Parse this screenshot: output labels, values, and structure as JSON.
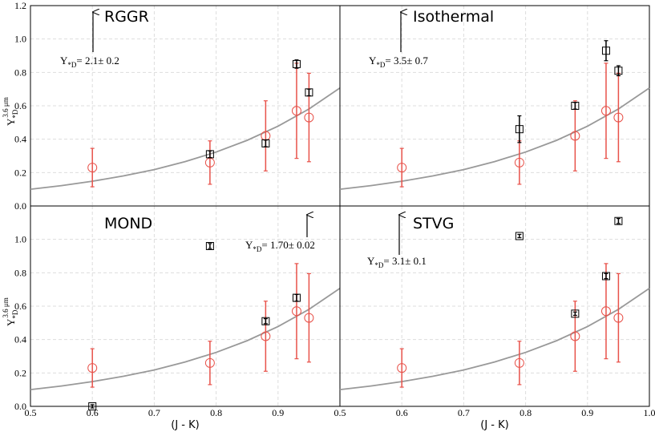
{
  "chart_data": [
    {
      "type": "scatter",
      "title": "RGGR",
      "annotation": {
        "symbol": "Y",
        "subscript": "*D",
        "text": "= 2.1± 0.2"
      },
      "ylabel": {
        "symbol": "Y",
        "subscript": "*D",
        "superscript": "3.6 μm"
      },
      "xlim": [
        0.5,
        1.0
      ],
      "ylim": [
        0,
        1.2
      ],
      "xticks": [
        0.5,
        0.6,
        0.7,
        0.8,
        0.9
      ],
      "xtick_labels": false,
      "yticks": [
        {
          "value": 0,
          "label": "0.0"
        },
        0.2,
        0.4,
        0.6,
        0.8,
        {
          "value": 1,
          "label": "1.0"
        },
        1.2
      ],
      "ytick_labels": true,
      "grid": true,
      "curve": {
        "color": "#999999",
        "x": [
          0.5,
          0.55,
          0.6,
          0.65,
          0.7,
          0.75,
          0.8,
          0.85,
          0.9,
          0.95,
          1.0
        ],
        "values": [
          0.1,
          0.122,
          0.148,
          0.18,
          0.218,
          0.266,
          0.323,
          0.393,
          0.478,
          0.581,
          0.707
        ]
      },
      "series": [
        {
          "marker": "circle",
          "color": "#e8524a",
          "x": [
            0.6,
            0.79,
            0.88,
            0.93,
            0.95
          ],
          "values": [
            0.23,
            0.26,
            0.42,
            0.57,
            0.53
          ],
          "errors": [
            0.115,
            0.13,
            0.21,
            0.285,
            0.265
          ]
        },
        {
          "marker": "square",
          "color": "#000000",
          "x": [
            0.79,
            0.88,
            0.93,
            0.95
          ],
          "values": [
            0.31,
            0.375,
            0.85,
            0.68
          ],
          "errors": [
            0.02,
            0.02,
            0.025,
            0.02
          ]
        }
      ]
    },
    {
      "type": "scatter",
      "title": "Isothermal",
      "annotation": {
        "symbol": "Y",
        "subscript": "*D",
        "text": "= 3.5± 0.7"
      },
      "xlim": [
        0.5,
        1.0
      ],
      "ylim": [
        0,
        1.2
      ],
      "xticks": [
        0.5,
        0.6,
        0.7,
        0.8,
        0.9,
        {
          "value": 1,
          "label": "1.0"
        }
      ],
      "xtick_labels": false,
      "yticks": [
        {
          "value": 0,
          "label": "0.0"
        },
        0.2,
        0.4,
        0.6,
        0.8,
        {
          "value": 1,
          "label": "1.0"
        },
        1.2
      ],
      "ytick_labels": false,
      "grid": true,
      "curve": {
        "color": "#999999",
        "x": [
          0.5,
          0.55,
          0.6,
          0.65,
          0.7,
          0.75,
          0.8,
          0.85,
          0.9,
          0.95,
          1.0
        ],
        "values": [
          0.1,
          0.122,
          0.148,
          0.18,
          0.218,
          0.266,
          0.323,
          0.393,
          0.478,
          0.581,
          0.707
        ]
      },
      "series": [
        {
          "marker": "circle",
          "color": "#e8524a",
          "x": [
            0.6,
            0.79,
            0.88,
            0.93,
            0.95
          ],
          "values": [
            0.23,
            0.26,
            0.42,
            0.57,
            0.53
          ],
          "errors": [
            0.115,
            0.13,
            0.21,
            0.285,
            0.265
          ]
        },
        {
          "marker": "square",
          "color": "#000000",
          "x": [
            0.79,
            0.88,
            0.93,
            0.95
          ],
          "values": [
            0.46,
            0.6,
            0.93,
            0.81
          ],
          "errors": [
            0.08,
            0.02,
            0.06,
            0.03
          ]
        }
      ]
    },
    {
      "type": "scatter",
      "title": "MOND",
      "annotation": {
        "symbol": "Y",
        "subscript": "*D",
        "text": "= 1.70± 0.02"
      },
      "ylabel": {
        "symbol": "Y",
        "subscript": "*D",
        "superscript": "3.6 μm"
      },
      "xlabel": "(J - K)",
      "xlim": [
        0.5,
        1.0
      ],
      "ylim": [
        0,
        1.2
      ],
      "xticks": [
        0.5,
        0.6,
        0.7,
        0.8,
        0.9
      ],
      "xtick_labels": true,
      "yticks": [
        {
          "value": 0,
          "label": "0.0"
        },
        0.2,
        0.4,
        0.6,
        0.8,
        {
          "value": 1,
          "label": "1.0"
        }
      ],
      "ytick_labels": true,
      "grid": true,
      "curve": {
        "color": "#999999",
        "x": [
          0.5,
          0.55,
          0.6,
          0.65,
          0.7,
          0.75,
          0.8,
          0.85,
          0.9,
          0.95,
          1.0
        ],
        "values": [
          0.1,
          0.122,
          0.148,
          0.18,
          0.218,
          0.266,
          0.323,
          0.393,
          0.478,
          0.581,
          0.707
        ]
      },
      "series": [
        {
          "marker": "circle",
          "color": "#e8524a",
          "x": [
            0.6,
            0.79,
            0.88,
            0.93,
            0.95
          ],
          "values": [
            0.23,
            0.26,
            0.42,
            0.57,
            0.53
          ],
          "errors": [
            0.115,
            0.13,
            0.21,
            0.285,
            0.265
          ]
        },
        {
          "marker": "square",
          "color": "#000000",
          "x": [
            0.6,
            0.79,
            0.88,
            0.93
          ],
          "values": [
            0.0,
            0.96,
            0.51,
            0.65
          ],
          "errors": [
            0.01,
            0.015,
            0.015,
            0.02
          ]
        }
      ]
    },
    {
      "type": "scatter",
      "title": "STVG",
      "annotation": {
        "symbol": "Y",
        "subscript": "*D",
        "text": "= 3.1± 0.1"
      },
      "xlabel": "(J - K)",
      "xlim": [
        0.5,
        1.0
      ],
      "ylim": [
        0,
        1.2
      ],
      "xticks": [
        0.5,
        0.6,
        0.7,
        0.8,
        0.9,
        {
          "value": 1,
          "label": "1.0"
        }
      ],
      "xtick_labels": true,
      "yticks": [
        {
          "value": 0,
          "label": "0.0"
        },
        0.2,
        0.4,
        0.6,
        0.8,
        {
          "value": 1,
          "label": "1.0"
        },
        1.2
      ],
      "ytick_labels": false,
      "grid": true,
      "curve": {
        "color": "#999999",
        "x": [
          0.5,
          0.55,
          0.6,
          0.65,
          0.7,
          0.75,
          0.8,
          0.85,
          0.9,
          0.95,
          1.0
        ],
        "values": [
          0.1,
          0.122,
          0.148,
          0.18,
          0.218,
          0.266,
          0.323,
          0.393,
          0.478,
          0.581,
          0.707
        ]
      },
      "series": [
        {
          "marker": "circle",
          "color": "#e8524a",
          "x": [
            0.6,
            0.79,
            0.88,
            0.93,
            0.95
          ],
          "values": [
            0.23,
            0.26,
            0.42,
            0.57,
            0.53
          ],
          "errors": [
            0.115,
            0.13,
            0.21,
            0.285,
            0.265
          ]
        },
        {
          "marker": "square",
          "color": "#000000",
          "x": [
            0.79,
            0.88,
            0.93,
            0.95
          ],
          "values": [
            1.02,
            0.555,
            0.78,
            1.11
          ],
          "errors": [
            0.01,
            0.01,
            0.015,
            0.015
          ]
        }
      ]
    }
  ]
}
